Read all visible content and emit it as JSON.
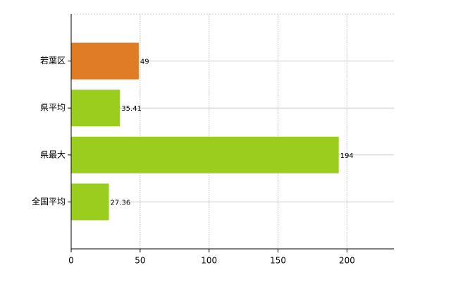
{
  "chart_data": {
    "type": "bar",
    "orientation": "horizontal",
    "categories": [
      "若葉区",
      "県平均",
      "県最大",
      "全国平均"
    ],
    "values": [
      49,
      35.41,
      194,
      27.36
    ],
    "colors": [
      "#e07b26",
      "#9acd1e",
      "#9acd1e",
      "#9acd1e"
    ],
    "xlim": [
      0,
      234
    ],
    "xticks": [
      0,
      50,
      100,
      150,
      200
    ],
    "grid": true
  }
}
